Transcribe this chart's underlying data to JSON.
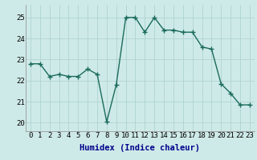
{
  "x": [
    0,
    1,
    2,
    3,
    4,
    5,
    6,
    7,
    8,
    9,
    10,
    11,
    12,
    13,
    14,
    15,
    16,
    17,
    18,
    19,
    20,
    21,
    22,
    23
  ],
  "y": [
    22.8,
    22.8,
    22.2,
    22.3,
    22.2,
    22.2,
    22.55,
    22.3,
    20.05,
    21.8,
    25.0,
    25.0,
    24.3,
    25.0,
    24.4,
    24.4,
    24.3,
    24.3,
    23.6,
    23.5,
    21.85,
    21.4,
    20.85,
    20.85
  ],
  "line_color": "#1a6b5a",
  "marker": "+",
  "marker_size": 4,
  "marker_edge_width": 1.0,
  "bg_color": "#ceeae8",
  "grid_color": "#b0d4d0",
  "xlabel": "Humidex (Indice chaleur)",
  "xlabel_fontsize": 7.5,
  "xlabel_color": "#00008b",
  "yticks": [
    20,
    21,
    22,
    23,
    24,
    25
  ],
  "xticks": [
    0,
    1,
    2,
    3,
    4,
    5,
    6,
    7,
    8,
    9,
    10,
    11,
    12,
    13,
    14,
    15,
    16,
    17,
    18,
    19,
    20,
    21,
    22,
    23
  ],
  "ylim": [
    19.6,
    25.6
  ],
  "xlim": [
    -0.5,
    23.5
  ],
  "tick_fontsize": 6.5,
  "line_width": 1.0
}
